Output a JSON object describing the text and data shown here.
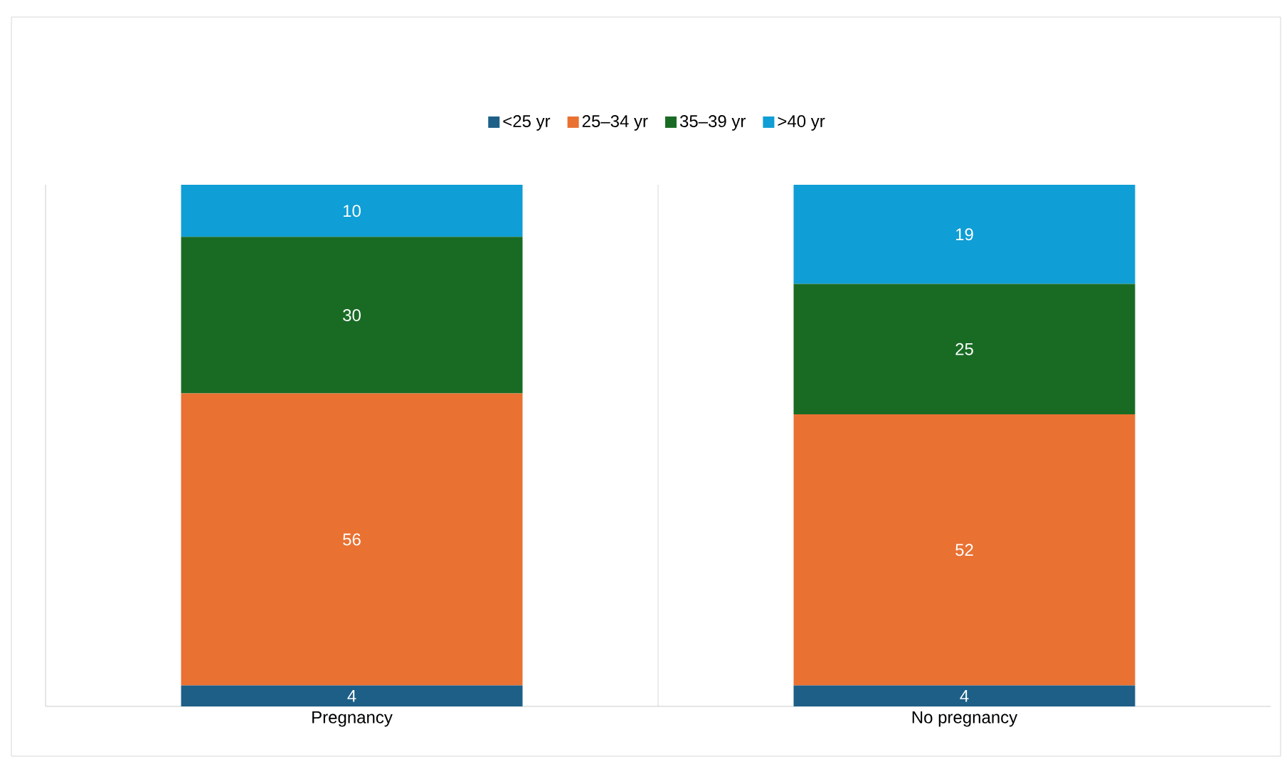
{
  "chart_data": {
    "type": "bar",
    "stacked": true,
    "data_labels": true,
    "legend": "top",
    "categories": [
      "Pregnancy",
      "No pregnancy"
    ],
    "series": [
      {
        "name": "<25 yr",
        "color": "#1d5f87",
        "values": [
          4,
          4
        ]
      },
      {
        "name": "25–34 yr",
        "color": "#e97132",
        "values": [
          56,
          52
        ]
      },
      {
        "name": "35–39 yr",
        "color": "#196b24",
        "values": [
          30,
          25
        ]
      },
      {
        "name": ">40 yr",
        "color": "#0f9ed5",
        "values": [
          10,
          19
        ]
      }
    ]
  }
}
